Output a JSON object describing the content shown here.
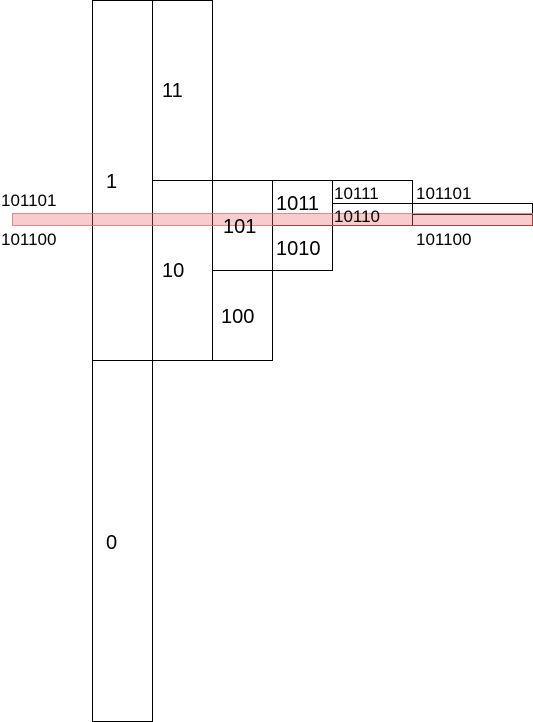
{
  "diagram": {
    "nodes": {
      "n1": "1",
      "n0": "0",
      "n11": "11",
      "n10": "10",
      "n101": "101",
      "n100": "100",
      "n1011": "1011",
      "n1010": "1010",
      "n10111": "10111",
      "n10110": "10110",
      "n101101": "101101",
      "n101100": "101100"
    },
    "side_labels": {
      "left_top": "101101",
      "left_bottom": "101100",
      "right_top": "101101",
      "right_bottom": "101100"
    },
    "highlight_color": "#ec6e6e"
  }
}
